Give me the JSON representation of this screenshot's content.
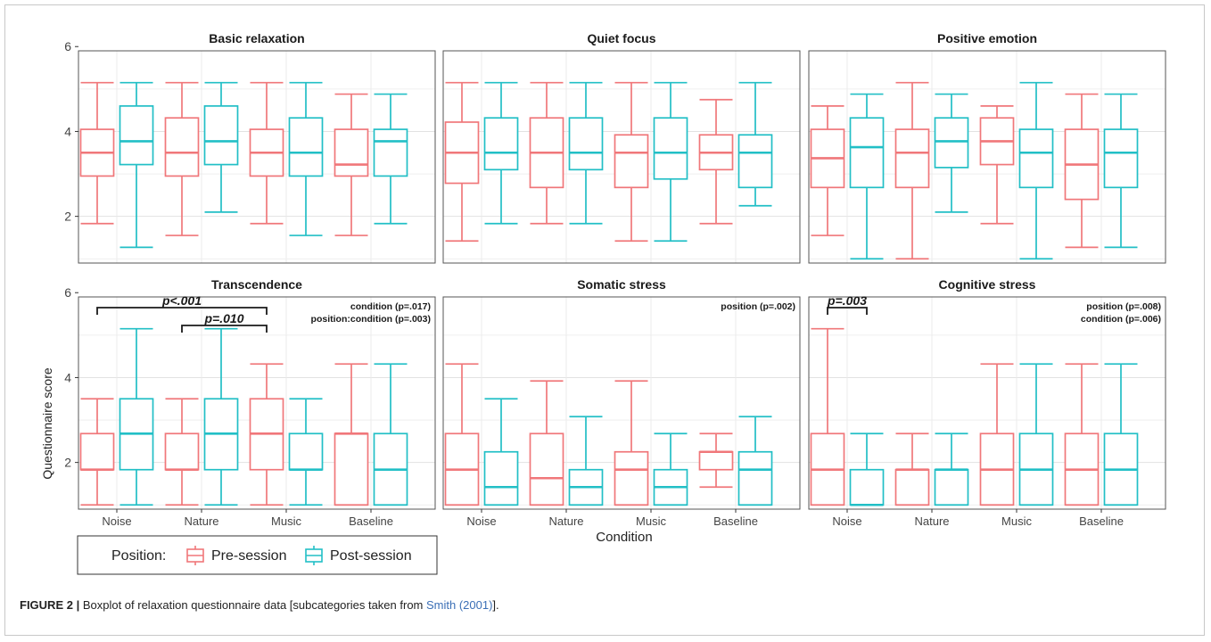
{
  "colors": {
    "pre": "#F0777A",
    "post": "#22BFC6",
    "grid": "#ebebeb",
    "panel_border": "#555555"
  },
  "caption": {
    "label": "FIGURE 2 |",
    "text_before": " Boxplot of relaxation questionnaire data [subcategories taken from ",
    "citation": "Smith (2001)",
    "text_after": "]."
  },
  "chart_data": {
    "type": "boxplot",
    "xlabel": "Condition",
    "ylabel": "Questionnaire score",
    "categories": [
      "Noise",
      "Nature",
      "Music",
      "Baseline"
    ],
    "ylim": [
      0.9,
      5.9
    ],
    "yticks": [
      2,
      4,
      6
    ],
    "grid": true,
    "legend": {
      "title": "Position:",
      "placement": "bottom-left",
      "entries": [
        "Pre-session",
        "Post-session"
      ]
    },
    "panels": [
      {
        "title": "Basic relaxation",
        "annotations": [],
        "brackets": [],
        "series": [
          {
            "name": "Pre-session",
            "boxes": [
              {
                "min": 1.83,
                "q1": 2.95,
                "median": 3.5,
                "q3": 4.05,
                "max": 5.15
              },
              {
                "min": 1.55,
                "q1": 2.95,
                "median": 3.5,
                "q3": 4.32,
                "max": 5.15
              },
              {
                "min": 1.83,
                "q1": 2.95,
                "median": 3.5,
                "q3": 4.05,
                "max": 5.15
              },
              {
                "min": 1.55,
                "q1": 2.95,
                "median": 3.22,
                "q3": 4.05,
                "max": 4.88
              }
            ]
          },
          {
            "name": "Post-session",
            "boxes": [
              {
                "min": 1.27,
                "q1": 3.22,
                "median": 3.77,
                "q3": 4.6,
                "max": 5.15
              },
              {
                "min": 2.1,
                "q1": 3.22,
                "median": 3.77,
                "q3": 4.6,
                "max": 5.15
              },
              {
                "min": 1.55,
                "q1": 2.95,
                "median": 3.5,
                "q3": 4.32,
                "max": 5.15
              },
              {
                "min": 1.83,
                "q1": 2.95,
                "median": 3.77,
                "q3": 4.05,
                "max": 4.88
              }
            ]
          }
        ]
      },
      {
        "title": "Quiet focus",
        "annotations": [],
        "brackets": [],
        "series": [
          {
            "name": "Pre-session",
            "boxes": [
              {
                "min": 1.42,
                "q1": 2.78,
                "median": 3.5,
                "q3": 4.22,
                "max": 5.15
              },
              {
                "min": 1.83,
                "q1": 2.68,
                "median": 3.5,
                "q3": 4.32,
                "max": 5.15
              },
              {
                "min": 1.42,
                "q1": 2.68,
                "median": 3.5,
                "q3": 3.92,
                "max": 5.15
              },
              {
                "min": 1.83,
                "q1": 3.1,
                "median": 3.5,
                "q3": 3.92,
                "max": 4.75
              }
            ]
          },
          {
            "name": "Post-session",
            "boxes": [
              {
                "min": 1.83,
                "q1": 3.1,
                "median": 3.5,
                "q3": 4.32,
                "max": 5.15
              },
              {
                "min": 1.83,
                "q1": 3.1,
                "median": 3.5,
                "q3": 4.32,
                "max": 5.15
              },
              {
                "min": 1.42,
                "q1": 2.88,
                "median": 3.5,
                "q3": 4.32,
                "max": 5.15
              },
              {
                "min": 2.25,
                "q1": 2.68,
                "median": 3.5,
                "q3": 3.92,
                "max": 5.15
              }
            ]
          }
        ]
      },
      {
        "title": "Positive emotion",
        "annotations": [],
        "brackets": [],
        "series": [
          {
            "name": "Pre-session",
            "boxes": [
              {
                "min": 1.55,
                "q1": 2.68,
                "median": 3.37,
                "q3": 4.05,
                "max": 4.6
              },
              {
                "min": 1.0,
                "q1": 2.68,
                "median": 3.5,
                "q3": 4.05,
                "max": 5.15
              },
              {
                "min": 1.83,
                "q1": 3.22,
                "median": 3.77,
                "q3": 4.32,
                "max": 4.6
              },
              {
                "min": 1.27,
                "q1": 2.4,
                "median": 3.22,
                "q3": 4.05,
                "max": 4.88
              }
            ]
          },
          {
            "name": "Post-session",
            "boxes": [
              {
                "min": 1.0,
                "q1": 2.68,
                "median": 3.63,
                "q3": 4.32,
                "max": 4.88
              },
              {
                "min": 2.1,
                "q1": 3.15,
                "median": 3.77,
                "q3": 4.32,
                "max": 4.88
              },
              {
                "min": 1.0,
                "q1": 2.68,
                "median": 3.5,
                "q3": 4.05,
                "max": 5.15
              },
              {
                "min": 1.27,
                "q1": 2.68,
                "median": 3.5,
                "q3": 4.05,
                "max": 4.88
              }
            ]
          }
        ]
      },
      {
        "title": "Transcendence",
        "annotations": [
          "condition (p=.017)",
          "position:condition (p=.003)"
        ],
        "brackets": [
          {
            "label": "p<.001",
            "from": "Noise",
            "to": "Music",
            "level": 1
          },
          {
            "label": "p=.010",
            "from": "Nature",
            "to": "Music",
            "level": 2
          }
        ],
        "series": [
          {
            "name": "Pre-session",
            "boxes": [
              {
                "min": 1.0,
                "q1": 1.83,
                "median": 1.83,
                "q3": 2.68,
                "max": 3.5
              },
              {
                "min": 1.0,
                "q1": 1.83,
                "median": 1.83,
                "q3": 2.68,
                "max": 3.5
              },
              {
                "min": 1.0,
                "q1": 1.83,
                "median": 2.68,
                "q3": 3.5,
                "max": 4.32
              },
              {
                "min": 1.0,
                "q1": 1.0,
                "median": 2.68,
                "q3": 2.68,
                "max": 4.32
              }
            ]
          },
          {
            "name": "Post-session",
            "boxes": [
              {
                "min": 1.0,
                "q1": 1.83,
                "median": 2.68,
                "q3": 3.5,
                "max": 5.15
              },
              {
                "min": 1.0,
                "q1": 1.83,
                "median": 2.68,
                "q3": 3.5,
                "max": 5.15
              },
              {
                "min": 1.0,
                "q1": 1.83,
                "median": 1.83,
                "q3": 2.68,
                "max": 3.5
              },
              {
                "min": 1.0,
                "q1": 1.0,
                "median": 1.83,
                "q3": 2.68,
                "max": 4.32
              }
            ]
          }
        ]
      },
      {
        "title": "Somatic stress",
        "annotations": [
          "position (p=.002)"
        ],
        "brackets": [],
        "series": [
          {
            "name": "Pre-session",
            "boxes": [
              {
                "min": 1.0,
                "q1": 1.0,
                "median": 1.83,
                "q3": 2.68,
                "max": 4.32
              },
              {
                "min": 1.0,
                "q1": 1.0,
                "median": 1.63,
                "q3": 2.68,
                "max": 3.92
              },
              {
                "min": 1.0,
                "q1": 1.0,
                "median": 1.83,
                "q3": 2.25,
                "max": 3.92
              },
              {
                "min": 1.42,
                "q1": 1.83,
                "median": 2.25,
                "q3": 2.25,
                "max": 2.68
              }
            ]
          },
          {
            "name": "Post-session",
            "boxes": [
              {
                "min": 1.0,
                "q1": 1.0,
                "median": 1.42,
                "q3": 2.25,
                "max": 3.5
              },
              {
                "min": 1.0,
                "q1": 1.0,
                "median": 1.42,
                "q3": 1.83,
                "max": 3.08
              },
              {
                "min": 1.0,
                "q1": 1.0,
                "median": 1.42,
                "q3": 1.83,
                "max": 2.68
              },
              {
                "min": 1.0,
                "q1": 1.0,
                "median": 1.83,
                "q3": 2.25,
                "max": 3.08
              }
            ]
          }
        ]
      },
      {
        "title": "Cognitive stress",
        "annotations": [
          "position (p=.008)",
          "condition (p=.006)"
        ],
        "brackets": [
          {
            "label": "p=.003",
            "from": "Noise",
            "to": "Noise",
            "level": 1
          }
        ],
        "series": [
          {
            "name": "Pre-session",
            "boxes": [
              {
                "min": 1.0,
                "q1": 1.0,
                "median": 1.83,
                "q3": 2.68,
                "max": 5.15
              },
              {
                "min": 1.0,
                "q1": 1.0,
                "median": 1.83,
                "q3": 1.83,
                "max": 2.68
              },
              {
                "min": 1.0,
                "q1": 1.0,
                "median": 1.83,
                "q3": 2.68,
                "max": 4.32
              },
              {
                "min": 1.0,
                "q1": 1.0,
                "median": 1.83,
                "q3": 2.68,
                "max": 4.32
              }
            ]
          },
          {
            "name": "Post-session",
            "boxes": [
              {
                "min": 1.0,
                "q1": 1.0,
                "median": 1.0,
                "q3": 1.83,
                "max": 2.68
              },
              {
                "min": 1.0,
                "q1": 1.0,
                "median": 1.83,
                "q3": 1.83,
                "max": 2.68
              },
              {
                "min": 1.0,
                "q1": 1.0,
                "median": 1.83,
                "q3": 2.68,
                "max": 4.32
              },
              {
                "min": 1.0,
                "q1": 1.0,
                "median": 1.83,
                "q3": 2.68,
                "max": 4.32
              }
            ]
          }
        ]
      }
    ]
  }
}
